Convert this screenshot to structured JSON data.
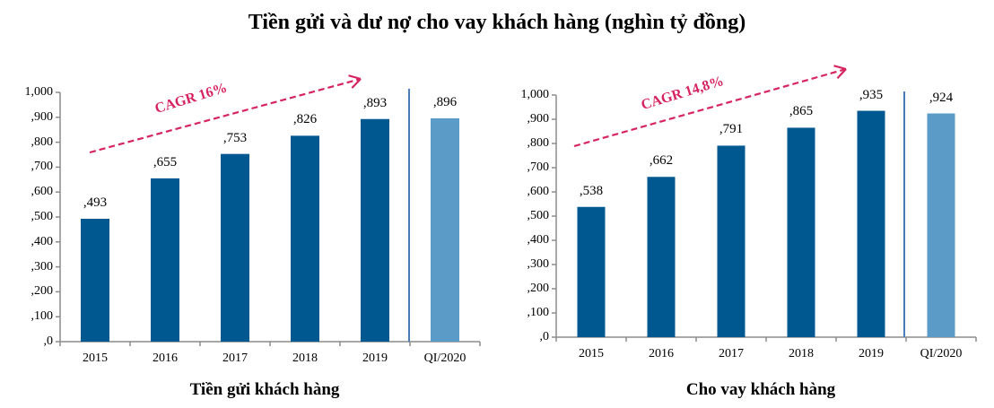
{
  "title": "Tiền gửi và dư nợ cho vay khách hàng (nghìn tỷ đồng)",
  "colors": {
    "bar_history": "#005891",
    "bar_current": "#5b9bc8",
    "separator": "#4a7ebb",
    "axis": "#8c8c8c",
    "cagr": "#d6245f"
  },
  "chart_data": [
    {
      "type": "bar",
      "title": "Tiền gửi khách hàng",
      "categories": [
        "2015",
        "2016",
        "2017",
        "2018",
        "2019",
        "QI/2020"
      ],
      "values": [
        493,
        655,
        753,
        826,
        893,
        896
      ],
      "value_labels": [
        ",493",
        ",655",
        ",753",
        ",826",
        ",893",
        ",896"
      ],
      "ylim": [
        0,
        1000
      ],
      "yticks": [
        ",0",
        ",100",
        ",200",
        ",300",
        ",400",
        ",500",
        ",600",
        ",700",
        ",800",
        ",900",
        "1,000"
      ],
      "annotation": "CAGR 16%",
      "xlabel": "",
      "ylabel": "",
      "grid": false
    },
    {
      "type": "bar",
      "title": "Cho vay khách hàng",
      "categories": [
        "2015",
        "2016",
        "2017",
        "2018",
        "2019",
        "QI/2020"
      ],
      "values": [
        538,
        662,
        791,
        865,
        935,
        924
      ],
      "value_labels": [
        ",538",
        ",662",
        ",791",
        ",865",
        ",935",
        ",924"
      ],
      "ylim": [
        0,
        1000
      ],
      "yticks": [
        ",0",
        ",100",
        ",200",
        ",300",
        ",400",
        ",500",
        ",600",
        ",700",
        ",800",
        ",900",
        "1,000"
      ],
      "annotation": "CAGR 14,8%",
      "xlabel": "",
      "ylabel": "",
      "grid": false
    }
  ]
}
